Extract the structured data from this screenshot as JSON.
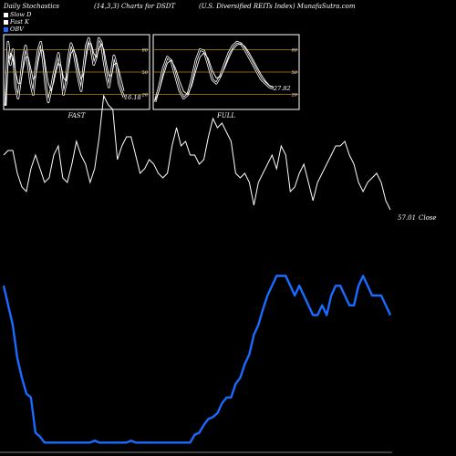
{
  "header": {
    "left": "Daily Stochastics",
    "center": "(14,3,3) Charts for DSDT",
    "right": "(U.S. Diversified REITs Index) MunafaSutra.com"
  },
  "legend": [
    {
      "label": "Slow  D",
      "color": "#ffffff"
    },
    {
      "label": "Fast K",
      "color": "#ffffff"
    },
    {
      "label": "OBV",
      "color": "#1a6bff"
    }
  ],
  "colors": {
    "background": "#000000",
    "price": "#ffffff",
    "obv": "#1a6bff",
    "gridline": "#b8860b"
  },
  "chart_data": [
    {
      "type": "line",
      "xlabel": "FAST",
      "ylim": [
        0,
        100
      ],
      "yticks": [
        20,
        50,
        80
      ],
      "last_value_label": "16.18",
      "series": [
        {
          "name": "Fast K",
          "values": [
            5,
            90,
            60,
            80,
            30,
            15,
            40,
            70,
            85,
            60,
            35,
            20,
            55,
            80,
            90,
            65,
            30,
            10,
            25,
            45,
            60,
            75,
            50,
            20,
            35,
            70,
            88,
            78,
            60,
            40,
            25,
            55,
            85,
            95,
            80,
            60,
            70,
            95,
            90,
            65,
            45,
            30,
            50,
            72,
            60,
            35,
            25,
            16
          ]
        },
        {
          "name": "Slow D",
          "values": [
            5,
            60,
            75,
            70,
            50,
            35,
            35,
            55,
            70,
            70,
            55,
            40,
            45,
            65,
            80,
            78,
            55,
            35,
            25,
            35,
            50,
            62,
            58,
            42,
            38,
            55,
            75,
            80,
            72,
            55,
            40,
            48,
            70,
            88,
            88,
            75,
            70,
            80,
            88,
            80,
            62,
            45,
            45,
            60,
            62,
            52,
            38,
            25
          ]
        }
      ]
    },
    {
      "type": "line",
      "xlabel": "FULL",
      "ylim": [
        0,
        100
      ],
      "yticks": [
        20,
        50,
        80
      ],
      "last_value_label": "27.82",
      "series": [
        {
          "name": "K",
          "values": [
            10,
            30,
            55,
            70,
            65,
            45,
            25,
            15,
            20,
            40,
            65,
            80,
            78,
            60,
            40,
            35,
            45,
            60,
            75,
            85,
            90,
            88,
            80,
            70,
            60,
            50,
            40,
            35,
            30,
            28
          ]
        },
        {
          "name": "D",
          "values": [
            12,
            25,
            45,
            62,
            66,
            55,
            38,
            24,
            20,
            32,
            52,
            70,
            76,
            68,
            52,
            42,
            44,
            55,
            68,
            80,
            86,
            88,
            84,
            76,
            66,
            56,
            46,
            38,
            32,
            30
          ]
        }
      ]
    },
    {
      "type": "line",
      "last_value_label": "57.01",
      "last_value_suffix": "Close",
      "series": [
        {
          "name": "Close",
          "values": [
            330,
            335,
            335,
            310,
            295,
            290,
            315,
            330,
            315,
            300,
            305,
            330,
            340,
            305,
            300,
            320,
            345,
            330,
            320,
            300,
            315,
            350,
            395,
            385,
            380,
            325,
            340,
            350,
            350,
            330,
            310,
            315,
            325,
            320,
            310,
            305,
            310,
            340,
            360,
            340,
            345,
            330,
            330,
            320,
            325,
            350,
            370,
            360,
            365,
            355,
            345,
            310,
            305,
            310,
            300,
            275,
            300,
            310,
            320,
            330,
            315,
            340,
            330,
            290,
            295,
            310,
            320,
            300,
            280,
            300,
            310,
            320,
            330,
            340,
            340,
            345,
            330,
            320,
            300,
            290,
            300,
            305,
            310,
            300,
            280,
            270
          ]
        },
        {
          "name": "OBV",
          "values": [
            85,
            75,
            65,
            48,
            38,
            30,
            28,
            10,
            8,
            5,
            5,
            5,
            5,
            5,
            5,
            5,
            5,
            5,
            5,
            5,
            6,
            5,
            5,
            5,
            5,
            5,
            5,
            5,
            6,
            5,
            5,
            5,
            5,
            5,
            5,
            5,
            5,
            5,
            5,
            5,
            5,
            5,
            9,
            10,
            14,
            17,
            18,
            20,
            25,
            28,
            28,
            35,
            38,
            45,
            50,
            60,
            65,
            73,
            80,
            85,
            90,
            90,
            90,
            85,
            80,
            85,
            80,
            75,
            70,
            70,
            75,
            70,
            80,
            85,
            85,
            80,
            75,
            75,
            85,
            90,
            85,
            80,
            80,
            80,
            75,
            70
          ]
        }
      ]
    }
  ]
}
